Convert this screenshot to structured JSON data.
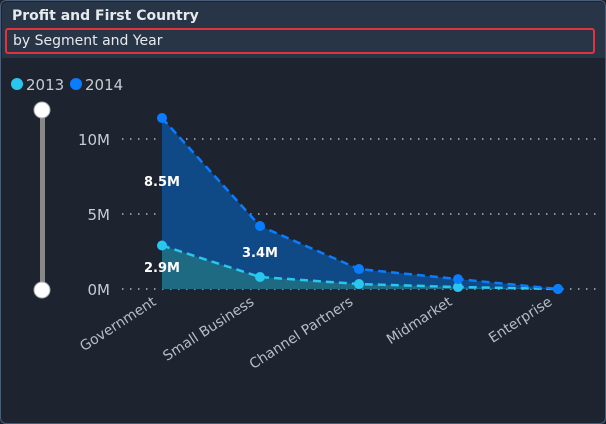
{
  "header": {
    "title": "Profit and First Country",
    "subtitle": "by Segment and Year"
  },
  "chart_data": {
    "type": "area",
    "stacked": true,
    "categories": [
      "Government",
      "Small Business",
      "Channel Partners",
      "Midmarket",
      "Enterprise"
    ],
    "series": [
      {
        "name": "2013",
        "color": "#29c6ef",
        "values": [
          2.9,
          0.8,
          0.33,
          0.13,
          0.0
        ],
        "labels": [
          "2.9M",
          "",
          "",
          "",
          ""
        ]
      },
      {
        "name": "2014",
        "color": "#0a7cff",
        "values": [
          8.5,
          3.4,
          1.0,
          0.53,
          0.0
        ],
        "labels": [
          "8.5M",
          "3.4M",
          "",
          "",
          ""
        ]
      }
    ],
    "yticks": [
      "0M",
      "5M",
      "10M"
    ],
    "ylim": [
      0,
      12
    ],
    "grid": true,
    "legend": "top-left",
    "line_style": "dashed"
  }
}
